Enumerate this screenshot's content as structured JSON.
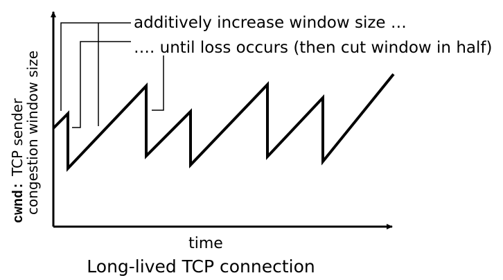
{
  "annotations": {
    "increase": "additively increase window size …",
    "loss": "…. until loss occurs (then cut window in half)"
  },
  "axes": {
    "xlabel": "time",
    "ylabel_code": "cwnd:",
    "ylabel_text": "TCP sender",
    "ylabel_line2": "congestion window size"
  },
  "caption": "Long-lived TCP connection",
  "colors": {
    "ink": "#000000",
    "caption": "#e8000b"
  }
}
